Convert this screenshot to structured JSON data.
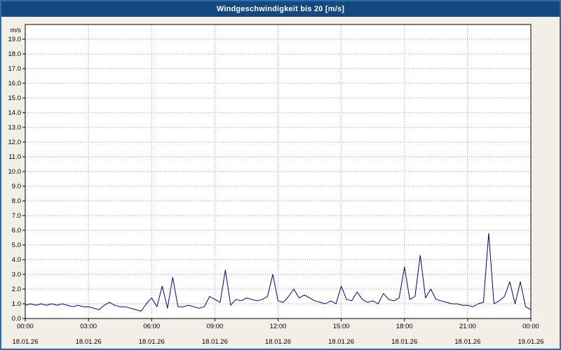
{
  "window": {
    "title": "Windgeschwindigkeit bis 20 [m/s]"
  },
  "colors": {
    "titlebar_bg": "#14487e",
    "titlebar_text": "#ffffff",
    "outer_border": "#2e6da4",
    "page_bg": "#f1efe8",
    "plot_bg": "#ffffff",
    "grid": "#999999",
    "axis": "#000000",
    "series": "#00008b",
    "label": "#000000"
  },
  "chart_data": {
    "type": "line",
    "title": "Windgeschwindigkeit bis 20 [m/s]",
    "ylabel": "m/s",
    "xlabel": "",
    "ylim": [
      0,
      20
    ],
    "x_range_hours": [
      0,
      24
    ],
    "grid": true,
    "legend": "none",
    "y_ticks": [
      "0.0",
      "1.0",
      "2.0",
      "3.0",
      "4.0",
      "5.0",
      "6.0",
      "7.0",
      "8.0",
      "9.0",
      "10.0",
      "11.0",
      "12.0",
      "13.0",
      "14.0",
      "15.0",
      "16.0",
      "17.0",
      "18.0",
      "19.0"
    ],
    "x_ticks": [
      {
        "hour": 0,
        "time": "00:00",
        "date": "18.01.26"
      },
      {
        "hour": 3,
        "time": "03:00",
        "date": "18.01.26"
      },
      {
        "hour": 6,
        "time": "06:00",
        "date": "18.01.26"
      },
      {
        "hour": 9,
        "time": "09:00",
        "date": "18.01.26"
      },
      {
        "hour": 12,
        "time": "12:00",
        "date": "18.01.26"
      },
      {
        "hour": 15,
        "time": "15:00",
        "date": "18.01.26"
      },
      {
        "hour": 18,
        "time": "18:00",
        "date": "18.01.26"
      },
      {
        "hour": 21,
        "time": "21:00",
        "date": "18.01.26"
      },
      {
        "hour": 24,
        "time": "00:00",
        "date": "19.01.26"
      }
    ],
    "series": [
      {
        "name": "Windgeschwindigkeit",
        "unit": "m/s",
        "color": "#00008b",
        "points": [
          [
            0.0,
            0.9
          ],
          [
            0.25,
            1.0
          ],
          [
            0.5,
            0.9
          ],
          [
            0.75,
            1.0
          ],
          [
            1.0,
            0.9
          ],
          [
            1.25,
            1.0
          ],
          [
            1.5,
            0.9
          ],
          [
            1.75,
            1.0
          ],
          [
            2.0,
            0.9
          ],
          [
            2.25,
            0.8
          ],
          [
            2.5,
            0.9
          ],
          [
            2.75,
            0.8
          ],
          [
            3.0,
            0.8
          ],
          [
            3.25,
            0.7
          ],
          [
            3.5,
            0.6
          ],
          [
            3.75,
            0.9
          ],
          [
            4.0,
            1.1
          ],
          [
            4.25,
            0.9
          ],
          [
            4.5,
            0.8
          ],
          [
            4.75,
            0.8
          ],
          [
            5.0,
            0.7
          ],
          [
            5.25,
            0.6
          ],
          [
            5.5,
            0.5
          ],
          [
            5.75,
            1.0
          ],
          [
            6.0,
            1.4
          ],
          [
            6.25,
            0.8
          ],
          [
            6.5,
            2.2
          ],
          [
            6.75,
            0.7
          ],
          [
            7.0,
            2.8
          ],
          [
            7.25,
            0.8
          ],
          [
            7.5,
            0.8
          ],
          [
            7.75,
            0.9
          ],
          [
            8.0,
            0.8
          ],
          [
            8.25,
            0.7
          ],
          [
            8.5,
            0.8
          ],
          [
            8.75,
            1.5
          ],
          [
            9.0,
            1.3
          ],
          [
            9.25,
            1.1
          ],
          [
            9.5,
            3.3
          ],
          [
            9.75,
            0.9
          ],
          [
            10.0,
            1.3
          ],
          [
            10.25,
            1.2
          ],
          [
            10.5,
            1.4
          ],
          [
            10.75,
            1.3
          ],
          [
            11.0,
            1.2
          ],
          [
            11.25,
            1.3
          ],
          [
            11.5,
            1.5
          ],
          [
            11.75,
            3.0
          ],
          [
            12.0,
            1.2
          ],
          [
            12.25,
            1.1
          ],
          [
            12.5,
            1.5
          ],
          [
            12.75,
            2.0
          ],
          [
            13.0,
            1.4
          ],
          [
            13.25,
            1.6
          ],
          [
            13.5,
            1.4
          ],
          [
            13.75,
            1.2
          ],
          [
            14.0,
            1.1
          ],
          [
            14.25,
            1.0
          ],
          [
            14.5,
            1.2
          ],
          [
            14.75,
            1.0
          ],
          [
            15.0,
            2.2
          ],
          [
            15.25,
            1.3
          ],
          [
            15.5,
            1.2
          ],
          [
            15.75,
            1.8
          ],
          [
            16.0,
            1.3
          ],
          [
            16.25,
            1.1
          ],
          [
            16.5,
            1.2
          ],
          [
            16.75,
            1.0
          ],
          [
            17.0,
            1.7
          ],
          [
            17.25,
            1.3
          ],
          [
            17.5,
            1.2
          ],
          [
            17.75,
            1.4
          ],
          [
            18.0,
            3.5
          ],
          [
            18.25,
            1.3
          ],
          [
            18.5,
            1.5
          ],
          [
            18.75,
            4.3
          ],
          [
            19.0,
            1.4
          ],
          [
            19.25,
            2.0
          ],
          [
            19.5,
            1.3
          ],
          [
            19.75,
            1.2
          ],
          [
            20.0,
            1.1
          ],
          [
            20.25,
            1.0
          ],
          [
            20.5,
            1.0
          ],
          [
            20.75,
            0.9
          ],
          [
            21.0,
            0.9
          ],
          [
            21.25,
            0.8
          ],
          [
            21.5,
            1.0
          ],
          [
            21.75,
            1.1
          ],
          [
            22.0,
            5.8
          ],
          [
            22.25,
            1.0
          ],
          [
            22.5,
            1.2
          ],
          [
            22.75,
            1.5
          ],
          [
            23.0,
            2.5
          ],
          [
            23.25,
            1.0
          ],
          [
            23.5,
            2.5
          ],
          [
            23.75,
            0.8
          ],
          [
            24.0,
            0.6
          ]
        ]
      }
    ]
  }
}
